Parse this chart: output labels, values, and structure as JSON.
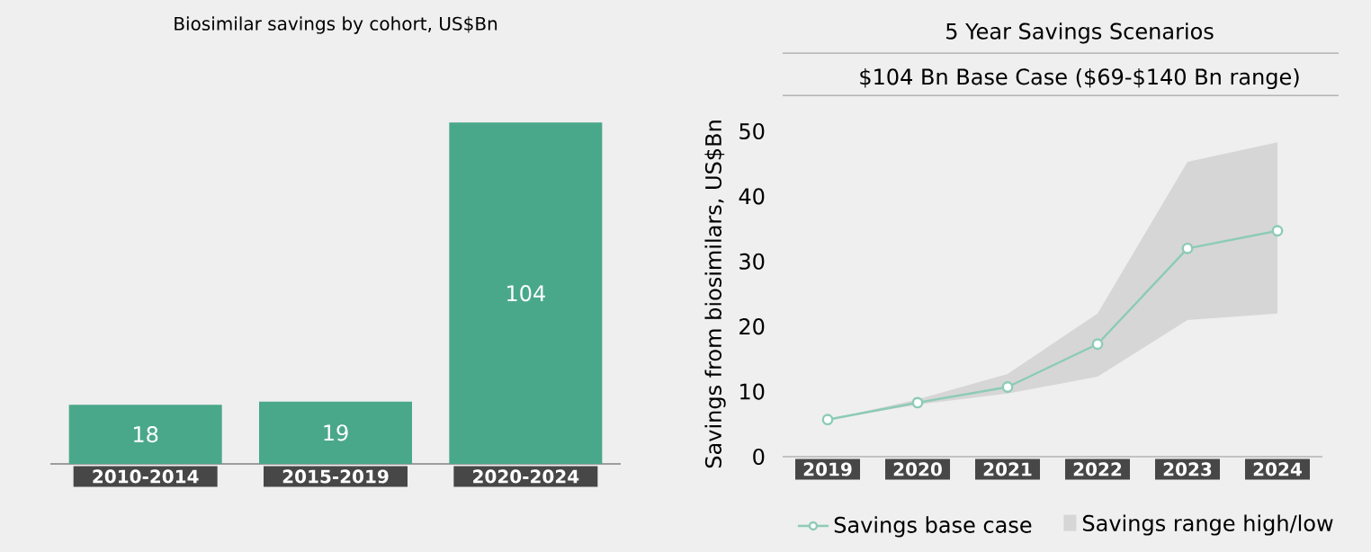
{
  "chart_data": [
    {
      "type": "bar",
      "title": "Biosimilar savings by cohort, US$Bn",
      "categories": [
        "2010-2014",
        "2015-2019",
        "2020-2024"
      ],
      "values": [
        18,
        19,
        104
      ],
      "color": "#4aa88a",
      "data_labels": true
    },
    {
      "type": "line",
      "title": "5 Year Savings Scenarios",
      "subtitle": "$104 Bn Base Case ($69-$140 Bn range)",
      "ylabel": "Savings from biosimilars, US$Bn",
      "categories": [
        "2019",
        "2020",
        "2021",
        "2022",
        "2023",
        "2024"
      ],
      "ylim": [
        0,
        50
      ],
      "yticks": [
        0,
        10,
        20,
        30,
        40,
        50
      ],
      "legend": "bottom",
      "marker": "circle",
      "annotations": [
        "Savings range high/low"
      ],
      "series": [
        {
          "name": "Savings base case",
          "color": "#8ccbb5",
          "values": [
            5.7,
            8.3,
            10.7,
            17.3,
            32,
            34.7
          ],
          "lower": [
            5.7,
            8,
            9.7,
            12.3,
            21,
            22
          ],
          "upper": [
            5.7,
            8.8,
            12.7,
            22,
            45.3,
            48.3
          ]
        }
      ]
    }
  ]
}
